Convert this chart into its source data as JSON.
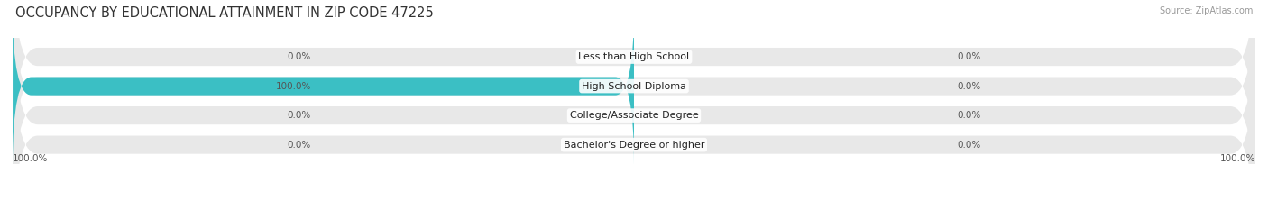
{
  "title": "OCCUPANCY BY EDUCATIONAL ATTAINMENT IN ZIP CODE 47225",
  "source": "Source: ZipAtlas.com",
  "categories": [
    "Less than High School",
    "High School Diploma",
    "College/Associate Degree",
    "Bachelor's Degree or higher"
  ],
  "owner_values": [
    0.0,
    100.0,
    0.0,
    0.0
  ],
  "renter_values": [
    0.0,
    0.0,
    0.0,
    0.0
  ],
  "owner_color": "#3bbfc4",
  "renter_color": "#f4a7bb",
  "bar_bg_color": "#e8e8e8",
  "title_fontsize": 10.5,
  "label_fontsize": 8.0,
  "annotation_fontsize": 7.5,
  "bg_color": "#ffffff",
  "bar_height": 0.62,
  "bottom_left_label": "100.0%",
  "bottom_right_label": "100.0%"
}
